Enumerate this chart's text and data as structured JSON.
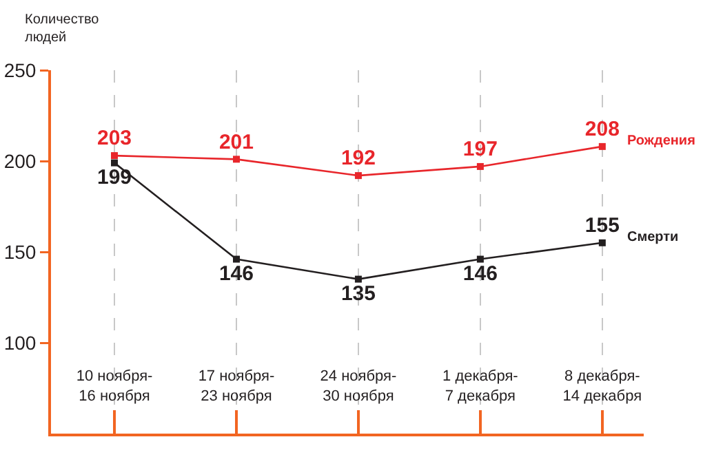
{
  "chart_data": {
    "type": "line",
    "ylabel": "Количество\nлюдей",
    "categories": [
      "10 ноября-\n16 ноября",
      "17 ноября-\n23 ноября",
      "24 ноября-\n30 ноября",
      "1 декабря-\n7 декабря",
      "8 декабря-\n14 декабря"
    ],
    "series": [
      {
        "name": "Рождения",
        "color": "#e8262b",
        "values": [
          203,
          201,
          192,
          197,
          208
        ]
      },
      {
        "name": "Смерти",
        "color": "#231f20",
        "values": [
          199,
          146,
          135,
          146,
          155
        ]
      }
    ],
    "ylim": [
      50,
      250
    ],
    "yticks": [
      100,
      150,
      200,
      250
    ],
    "grid": "x",
    "data_labels": true,
    "marker": "square"
  }
}
